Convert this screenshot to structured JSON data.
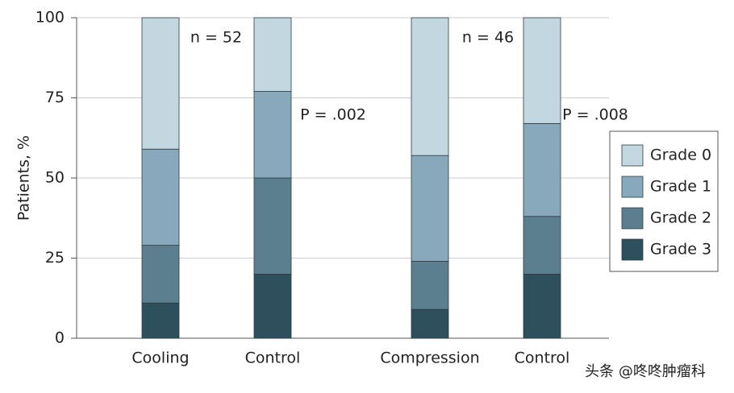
{
  "chart_data": {
    "type": "stacked_bar",
    "y_label": "Patients, %",
    "categories": [
      "Cooling",
      "Control",
      "Compression",
      "Control"
    ],
    "series": [
      {
        "name": "Grade 0",
        "color": "#c3d7e0",
        "values": [
          41,
          23,
          43,
          33
        ]
      },
      {
        "name": "Grade 1",
        "color": "#88a9bb",
        "values": [
          30,
          27,
          33,
          29
        ]
      },
      {
        "name": "Grade 2",
        "color": "#5b7f8f",
        "values": [
          18,
          30,
          15,
          18
        ]
      },
      {
        "name": "Grade 3",
        "color": "#2e4f5c",
        "values": [
          11,
          20,
          9,
          20
        ]
      }
    ],
    "ylim": [
      0,
      100
    ],
    "yticks": [
      0,
      25,
      50,
      75,
      100
    ],
    "grid": true,
    "legend": "right",
    "annotations": [
      "n = 52",
      "P = .002",
      "n = 46",
      "P = .008"
    ],
    "watermark": "头条 @咚咚肿瘤科"
  }
}
